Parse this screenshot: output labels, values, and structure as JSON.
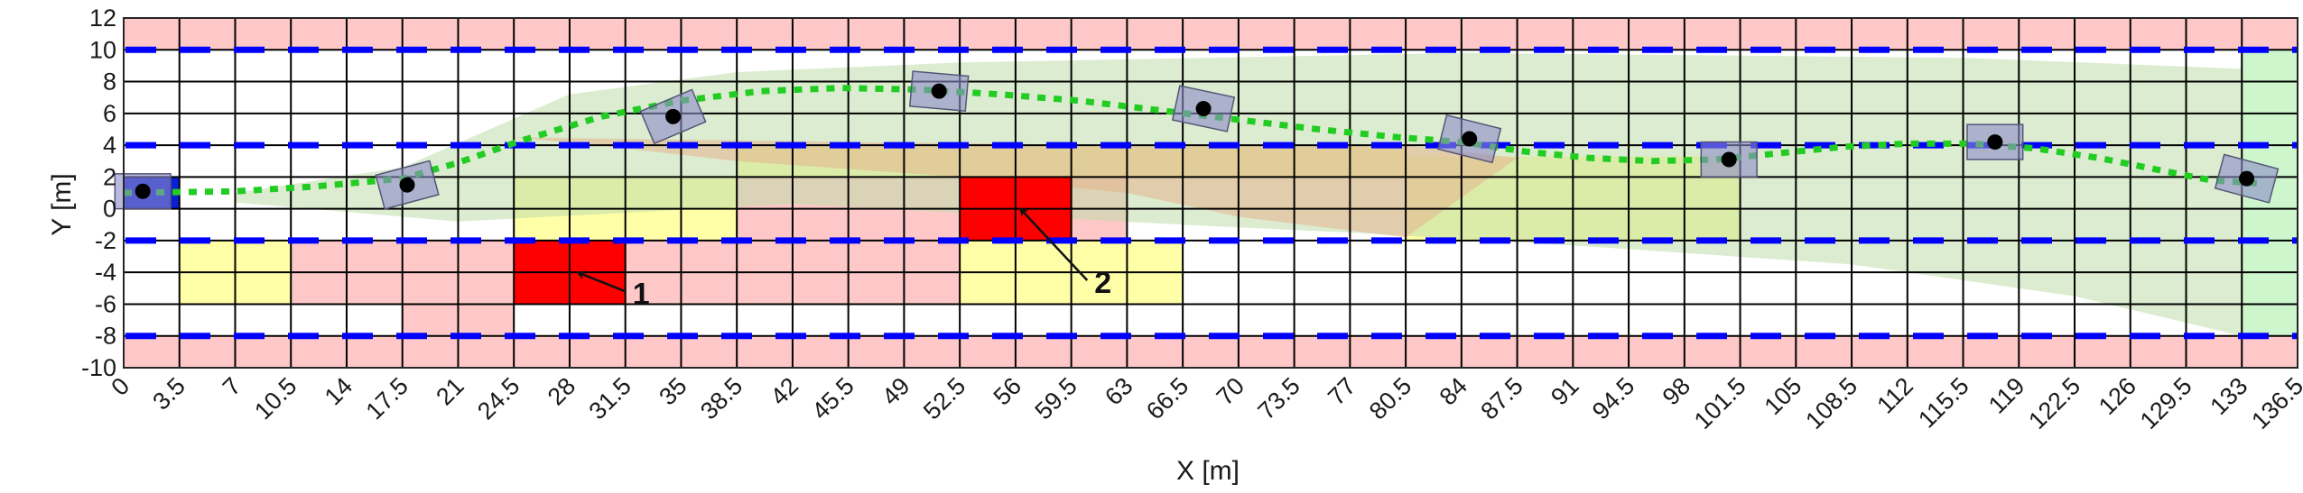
{
  "chart_data": {
    "type": "scatter",
    "xlabel": "X [m]",
    "ylabel": "Y [m]",
    "xlim": [
      0,
      136.5
    ],
    "ylim": [
      -10,
      12
    ],
    "x_ticks": [
      "0",
      "3.5",
      "7",
      "10.5",
      "14",
      "17.5",
      "21",
      "24.5",
      "28",
      "31.5",
      "35",
      "38.5",
      "42",
      "45.5",
      "49",
      "52.5",
      "56",
      "59.5",
      "63",
      "66.5",
      "70",
      "73.5",
      "77",
      "80.5",
      "84",
      "87.5",
      "91",
      "94.5",
      "98",
      "101.5",
      "105",
      "108.5",
      "112",
      "115.5",
      "119",
      "122.5",
      "126",
      "129.5",
      "133",
      "136.5"
    ],
    "y_ticks": [
      "12",
      "10",
      "8",
      "6",
      "4",
      "2",
      "0",
      "-2",
      "-4",
      "-6",
      "-8",
      "-10"
    ],
    "grid": true,
    "lane_boundaries_y": [
      10,
      4,
      -2,
      -8
    ],
    "road_edge_bands": [
      {
        "y0": 10,
        "y1": 12
      },
      {
        "y0": -10,
        "y1": -8
      }
    ],
    "pink_regions": [
      {
        "x0": 10.5,
        "x1": 24.5,
        "y0": -6,
        "y1": -2
      },
      {
        "x0": 17.5,
        "x1": 24.5,
        "y0": -8,
        "y1": -6
      },
      {
        "x0": 31.5,
        "x1": 52.5,
        "y0": -6,
        "y1": -2
      },
      {
        "x0": 38.5,
        "x1": 52.5,
        "y0": -2,
        "y1": 2
      },
      {
        "x0": 59.5,
        "x1": 63,
        "y0": -2,
        "y1": 2
      }
    ],
    "yellow_regions": [
      {
        "x0": 3.5,
        "x1": 10.5,
        "y0": -6,
        "y1": -2
      },
      {
        "x0": 24.5,
        "x1": 38.5,
        "y0": -2,
        "y1": 2
      },
      {
        "x0": 38.5,
        "x1": 80.5,
        "y0": 2,
        "y1": 4
      },
      {
        "x0": 52.5,
        "x1": 66.5,
        "y0": -6,
        "y1": -2
      },
      {
        "x0": 80.5,
        "x1": 101.5,
        "y0": -2,
        "y1": 3.3
      }
    ],
    "corridor_polygon": [
      [
        7,
        1
      ],
      [
        17.5,
        2.6
      ],
      [
        28,
        7.2
      ],
      [
        38.5,
        8.6
      ],
      [
        52.5,
        9.2
      ],
      [
        84,
        9.8
      ],
      [
        115.5,
        9.5
      ],
      [
        133,
        8.8
      ],
      [
        133,
        -8
      ],
      [
        122.5,
        -5.5
      ],
      [
        108.5,
        -3.5
      ],
      [
        91,
        -2.3
      ],
      [
        77,
        -1.5
      ],
      [
        66.5,
        -1
      ],
      [
        42,
        0.3
      ],
      [
        21,
        -0.8
      ],
      [
        7,
        0.4
      ]
    ],
    "reachable_polygon": [
      [
        24.5,
        4.5
      ],
      [
        45.5,
        4.2
      ],
      [
        63,
        4
      ],
      [
        80.5,
        4
      ],
      [
        87.5,
        3.2
      ],
      [
        80.5,
        -1.8
      ],
      [
        70,
        -0.5
      ],
      [
        63,
        1
      ],
      [
        52.5,
        2
      ],
      [
        38.5,
        3
      ],
      [
        31.5,
        3.8
      ]
    ],
    "goal_region": {
      "x0": 133,
      "x1": 136.5,
      "y0": -8,
      "y1": 10
    },
    "start_box": {
      "x0": 0,
      "x1": 3.5,
      "y0": 0,
      "y1": 2
    },
    "obstacles": [
      {
        "label": "1",
        "x0": 24.5,
        "x1": 31.5,
        "y0": -6,
        "y1": -2,
        "arrow_from": [
          31.5,
          -5.2
        ],
        "arrow_to": [
          28.5,
          -4
        ]
      },
      {
        "label": "2",
        "x0": 52.5,
        "x1": 59.5,
        "y0": -2,
        "y1": 2,
        "arrow_from": [
          60.5,
          -4.5
        ],
        "arrow_to": [
          56.3,
          0
        ]
      }
    ],
    "trajectory": {
      "x": [
        0,
        7,
        12,
        17.5,
        21,
        25,
        30,
        35,
        40,
        45,
        50,
        55,
        60,
        65,
        70,
        75,
        80,
        84,
        88,
        92,
        96,
        100,
        104,
        108,
        112,
        116,
        120,
        124,
        128,
        131,
        134
      ],
      "y": [
        1,
        1.1,
        1.4,
        1.9,
        2.9,
        4.3,
        5.8,
        6.8,
        7.4,
        7.6,
        7.5,
        7.2,
        6.8,
        6.2,
        5.6,
        5.0,
        4.5,
        4.2,
        3.6,
        3.2,
        3.0,
        3.1,
        3.5,
        3.9,
        4.1,
        4.1,
        3.8,
        3.2,
        2.4,
        1.8,
        1.6
      ]
    },
    "vehicles": [
      {
        "x": 1.2,
        "y": 1.1,
        "heading": 0
      },
      {
        "x": 17.8,
        "y": 1.5,
        "heading": 15
      },
      {
        "x": 34.5,
        "y": 5.8,
        "heading": 23
      },
      {
        "x": 51.2,
        "y": 7.4,
        "heading": -5
      },
      {
        "x": 67.8,
        "y": 6.3,
        "heading": -12
      },
      {
        "x": 84.5,
        "y": 4.4,
        "heading": -14
      },
      {
        "x": 100.8,
        "y": 3.1,
        "heading": 0
      },
      {
        "x": 117.5,
        "y": 4.2,
        "heading": 0
      },
      {
        "x": 133.3,
        "y": 1.9,
        "heading": -15
      }
    ],
    "colors": {
      "road_edge": "#ffc8c8",
      "pink_region": "#ffc8c8",
      "yellow_region": "#ffffa8",
      "corridor": "#bedcaa",
      "reachable": "#e6b48c",
      "goal": "#c8f5c8",
      "start": "#0a1fd8",
      "obstacle": "#ff0000",
      "lane_dash": "#0000ff",
      "trajectory": "#22cc22",
      "vehicle_box": "#8c8cc8",
      "vehicle_center": "#000000",
      "grid": "#000000"
    }
  }
}
